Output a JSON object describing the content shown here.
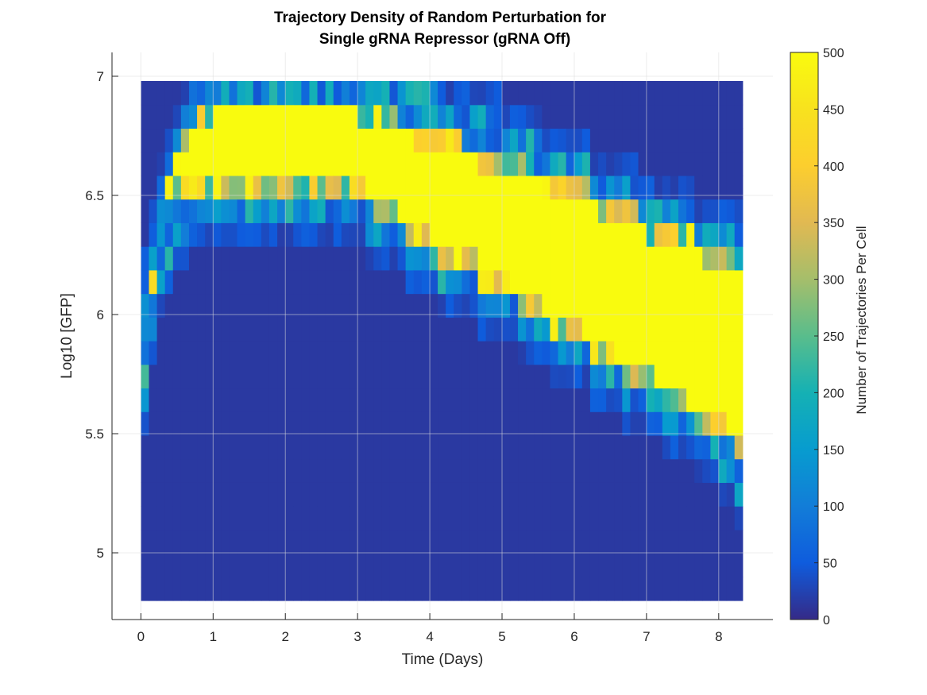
{
  "chart_data": {
    "type": "heatmap",
    "title_line1": "Trajectory Density of Random Perturbation for",
    "title_line2": "Single gRNA Repressor (gRNA Off)",
    "xlabel": "Time (Days)",
    "ylabel": "Log10 [GFP]",
    "xlim": [
      -0.4,
      8.75
    ],
    "ylim": [
      4.72,
      7.1
    ],
    "x_ticks": [
      "0",
      "1",
      "2",
      "3",
      "4",
      "5",
      "6",
      "7",
      "8"
    ],
    "y_ticks": [
      "5",
      "5.5",
      "6",
      "6.5",
      "7"
    ],
    "x_tick_values": [
      0,
      1,
      2,
      3,
      4,
      5,
      6,
      7,
      8
    ],
    "y_tick_values": [
      5,
      5.5,
      6,
      6.5,
      7
    ],
    "grid": true,
    "colorbar": {
      "label": "Number of Trajectories Per Cell",
      "min": 0,
      "max": 500,
      "ticks": [
        "0",
        "50",
        "100",
        "150",
        "200",
        "250",
        "300",
        "350",
        "400",
        "450",
        "500"
      ],
      "tick_values": [
        0,
        50,
        100,
        150,
        200,
        250,
        300,
        350,
        400,
        450,
        500
      ],
      "colormap": "parula"
    },
    "data_extent": {
      "x_range": [
        0,
        8.33
      ],
      "y_range": [
        4.8,
        6.98
      ],
      "n_time_bins": 75,
      "n_gfp_bins": 22,
      "background_value": 15,
      "saturated_value": 500
    },
    "upper_band_edge": {
      "days": [
        0.0,
        0.1,
        0.2,
        0.4,
        0.6,
        0.8,
        1.1,
        2.0,
        3.0,
        3.5,
        4.1,
        5.0,
        6.0,
        7.0,
        7.5,
        8.0,
        8.33
      ],
      "log10_gfp": [
        5.45,
        6.0,
        6.3,
        6.55,
        6.75,
        6.85,
        6.9,
        6.9,
        6.9,
        6.82,
        6.75,
        6.65,
        6.55,
        6.4,
        6.35,
        6.25,
        6.2
      ]
    },
    "lower_band_edge": {
      "days": [
        0.0,
        0.1,
        0.2,
        0.3,
        0.5,
        0.7,
        1.0,
        2.0,
        3.0,
        3.5,
        4.0,
        4.5,
        5.0,
        5.5,
        6.0,
        6.5,
        7.0,
        7.5,
        8.0,
        8.33
      ],
      "log10_gfp": [
        5.45,
        5.9,
        6.25,
        6.42,
        6.52,
        6.55,
        6.55,
        6.55,
        6.5,
        6.38,
        6.28,
        6.2,
        6.1,
        6.0,
        5.9,
        5.8,
        5.7,
        5.6,
        5.5,
        5.45
      ]
    },
    "upper_ridge": {
      "days": [
        0.0,
        0.1,
        0.3,
        0.5,
        0.8,
        1.2,
        2.0,
        3.0,
        4.0,
        4.3,
        5.0,
        5.5,
        6.0,
        6.5,
        7.0,
        7.5,
        8.0,
        8.33
      ],
      "log10_gfp": [
        5.8,
        6.2,
        6.45,
        6.6,
        6.75,
        6.85,
        6.95,
        6.92,
        6.82,
        6.78,
        6.72,
        6.62,
        6.55,
        6.47,
        6.4,
        6.33,
        6.28,
        6.25
      ]
    },
    "lower_ridge": {
      "days": [
        0.0,
        0.2,
        0.4,
        0.6,
        1.0,
        2.0,
        3.0,
        3.5,
        4.0,
        4.5,
        5.0,
        5.5,
        6.0,
        6.5,
        7.0,
        7.5,
        8.0,
        8.33
      ],
      "log10_gfp": [
        5.5,
        6.1,
        6.3,
        6.45,
        6.55,
        6.55,
        6.48,
        6.4,
        6.3,
        6.2,
        6.1,
        6.0,
        5.9,
        5.8,
        5.7,
        5.6,
        5.48,
        5.3
      ]
    }
  }
}
